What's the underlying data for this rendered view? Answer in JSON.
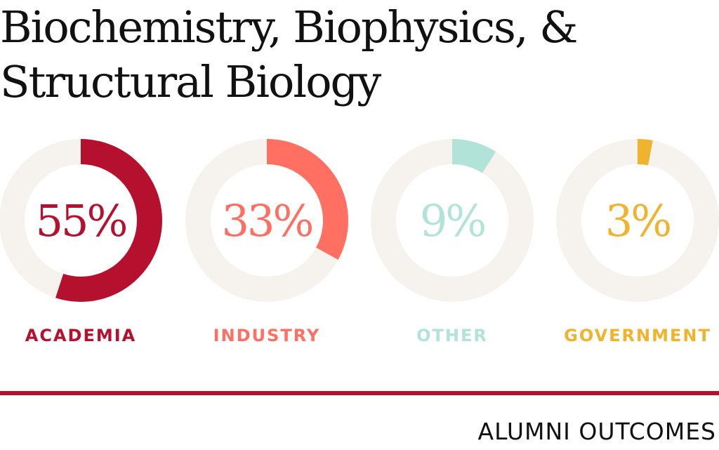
{
  "title_lines": [
    "Biochemistry, Biophysics, &",
    "Structural Biology"
  ],
  "footer": "ALUMNI OUTCOMES",
  "colors": {
    "track": "#f6f2ee",
    "academia": "#b5112f",
    "industry": "#ff7063",
    "other": "#b2e3d9",
    "government": "#f0b32e",
    "rule": "#b5112f",
    "text": "#111111"
  },
  "chart_data": {
    "type": "pie",
    "style": "donut",
    "title": "Biochemistry, Biophysics, & Structural Biology",
    "categories": [
      "ACADEMIA",
      "INDUSTRY",
      "OTHER",
      "GOVERNMENT"
    ],
    "values": [
      55,
      33,
      9,
      3
    ],
    "value_labels": [
      "55%",
      "33%",
      "9%",
      "3%"
    ],
    "unit": "%",
    "series_colors": [
      "#b5112f",
      "#ff7063",
      "#b2e3d9",
      "#f0b32e"
    ]
  }
}
